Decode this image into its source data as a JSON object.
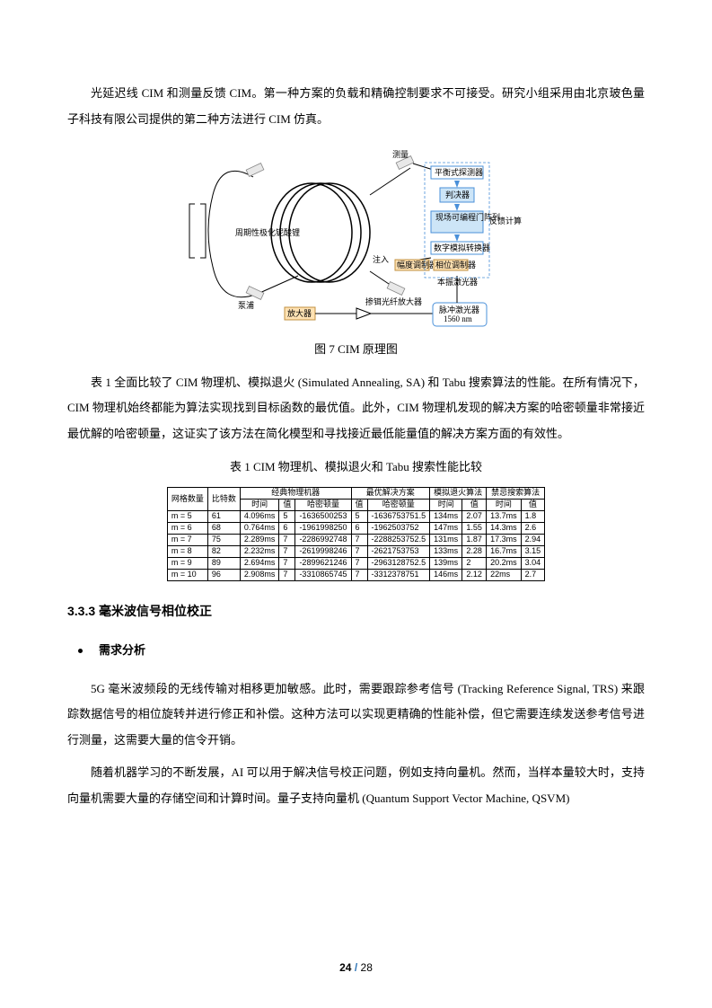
{
  "paragraphs": {
    "p1": "光延迟线 CIM 和测量反馈 CIM。第一种方案的负载和精确控制要求不可接受。研究小组采用由北京玻色量子科技有限公司提供的第二种方法进行 CIM 仿真。",
    "p2": "表 1 全面比较了 CIM 物理机、模拟退火 (Simulated Annealing, SA) 和 Tabu 搜索算法的性能。在所有情况下，CIM 物理机始终都能为算法实现找到目标函数的最优值。此外，CIM 物理机发现的解决方案的哈密顿量非常接近最优解的哈密顿量，这证实了该方法在简化模型和寻找接近最低能量值的解决方案方面的有效性。",
    "p3": "5G 毫米波频段的无线传输对相移更加敏感。此时，需要跟踪参考信号 (Tracking Reference Signal, TRS) 来跟踪数据信号的相位旋转并进行修正和补偿。这种方法可以实现更精确的性能补偿，但它需要连续发送参考信号进行测量，这需要大量的信令开销。",
    "p4": "随着机器学习的不断发展，AI 可以用于解决信号校正问题，例如支持向量机。然而，当样本量较大时，支持向量机需要大量的存储空间和计算时间。量子支持向量机 (Quantum Support Vector Machine, QSVM)"
  },
  "captions": {
    "fig7": "图 7 CIM 原理图",
    "tab1": "表 1 CIM 物理机、模拟退火和 Tabu 搜索性能比较"
  },
  "headings": {
    "h333": "3.3.3 毫米波信号相位校正",
    "bullet1": "需求分析"
  },
  "diagram": {
    "labels": {
      "measure": "测量",
      "detector": "平衡式探测器",
      "decision": "判决器",
      "fpga": "现场可编程门阵列",
      "dac": "数字模拟转换器",
      "inject": "注入",
      "ampmod": "幅度调制器",
      "phasemod": "相位调制器",
      "pump": "泵浦",
      "ppln": "周期性极化铌酸锂",
      "feedback": "反馈计算",
      "localosc": "本振激光器",
      "edfa": "掺铒光纤放大器",
      "pulselaser1": "脉冲激光器",
      "pulselaser2": "1560 nm",
      "ampbox": "放大器"
    },
    "colors": {
      "box_fill": "#cde5f7",
      "box_stroke": "#4a90d9",
      "yellow_fill": "#ffe2b3",
      "wire": "#000000"
    }
  },
  "table": {
    "headers": {
      "grid": "网格数量",
      "bits": "比特数",
      "grp_cim": "经典物理机器",
      "grp_opt": "最优解决方案",
      "grp_sa": "模拟退火算法",
      "grp_tabu": "禁忌搜索算法",
      "time": "时间",
      "val": "值",
      "ham": "哈密顿量"
    },
    "rows": [
      {
        "m": "m = 5",
        "bits": "61",
        "cim_t": "4.096ms",
        "cim_v": "5",
        "cim_h": "-1636500253",
        "opt_v": "5",
        "opt_h": "-1636753751.5",
        "sa_t": "134ms",
        "sa_v": "2.07",
        "tb_t": "13.7ms",
        "tb_v": "1.8"
      },
      {
        "m": "m = 6",
        "bits": "68",
        "cim_t": "0.764ms",
        "cim_v": "6",
        "cim_h": "-1961998250",
        "opt_v": "6",
        "opt_h": "-1962503752",
        "sa_t": "147ms",
        "sa_v": "1.55",
        "tb_t": "14.3ms",
        "tb_v": "2.6"
      },
      {
        "m": "m = 7",
        "bits": "75",
        "cim_t": "2.289ms",
        "cim_v": "7",
        "cim_h": "-2286992748",
        "opt_v": "7",
        "opt_h": "-2288253752.5",
        "sa_t": "131ms",
        "sa_v": "1.87",
        "tb_t": "17.3ms",
        "tb_v": "2.94"
      },
      {
        "m": "m = 8",
        "bits": "82",
        "cim_t": "2.232ms",
        "cim_v": "7",
        "cim_h": "-2619998246",
        "opt_v": "7",
        "opt_h": "-2621753753",
        "sa_t": "133ms",
        "sa_v": "2.28",
        "tb_t": "16.7ms",
        "tb_v": "3.15"
      },
      {
        "m": "m = 9",
        "bits": "89",
        "cim_t": "2.694ms",
        "cim_v": "7",
        "cim_h": "-2899621246",
        "opt_v": "7",
        "opt_h": "-2963128752.5",
        "sa_t": "139ms",
        "sa_v": "2",
        "tb_t": "20.2ms",
        "tb_v": "3.04"
      },
      {
        "m": "m = 10",
        "bits": "96",
        "cim_t": "2.908ms",
        "cim_v": "7",
        "cim_h": "-3310865745",
        "opt_v": "7",
        "opt_h": "-3312378751",
        "sa_t": "146ms",
        "sa_v": "2.12",
        "tb_t": "22ms",
        "tb_v": "2.7"
      }
    ]
  },
  "page": {
    "current": "24",
    "total": "28"
  }
}
